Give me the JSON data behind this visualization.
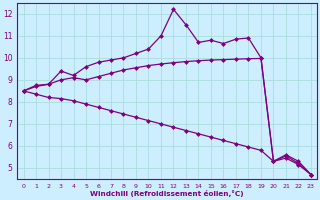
{
  "x": [
    0,
    1,
    2,
    3,
    4,
    5,
    6,
    7,
    8,
    9,
    10,
    11,
    12,
    13,
    14,
    15,
    16,
    17,
    18,
    19,
    20,
    21,
    22,
    23
  ],
  "line1": [
    8.5,
    8.7,
    8.8,
    9.4,
    9.2,
    9.6,
    9.8,
    9.9,
    10.0,
    10.2,
    10.4,
    11.0,
    12.2,
    11.5,
    10.7,
    10.8,
    10.65,
    10.85,
    10.9,
    10.0,
    5.3,
    5.6,
    5.3,
    4.7
  ],
  "line2": [
    8.5,
    8.75,
    8.8,
    9.0,
    9.1,
    9.0,
    9.15,
    9.3,
    9.45,
    9.55,
    9.65,
    9.72,
    9.78,
    9.83,
    9.87,
    9.9,
    9.92,
    9.94,
    9.96,
    9.97,
    5.3,
    5.55,
    5.2,
    4.7
  ],
  "line3": [
    8.5,
    8.35,
    8.2,
    8.15,
    8.05,
    7.9,
    7.75,
    7.6,
    7.45,
    7.3,
    7.15,
    7.0,
    6.85,
    6.7,
    6.55,
    6.4,
    6.25,
    6.1,
    5.95,
    5.8,
    5.3,
    5.45,
    5.15,
    4.7
  ],
  "line_color": "#800080",
  "bg_color": "#cceeff",
  "grid_color": "#aadddd",
  "xlabel": "Windchill (Refroidissement éolien,°C)",
  "ylim": [
    4.5,
    12.5
  ],
  "xlim": [
    -0.5,
    23.5
  ],
  "yticks": [
    5,
    6,
    7,
    8,
    9,
    10,
    11,
    12
  ],
  "xticks": [
    0,
    1,
    2,
    3,
    4,
    5,
    6,
    7,
    8,
    9,
    10,
    11,
    12,
    13,
    14,
    15,
    16,
    17,
    18,
    19,
    20,
    21,
    22,
    23
  ]
}
